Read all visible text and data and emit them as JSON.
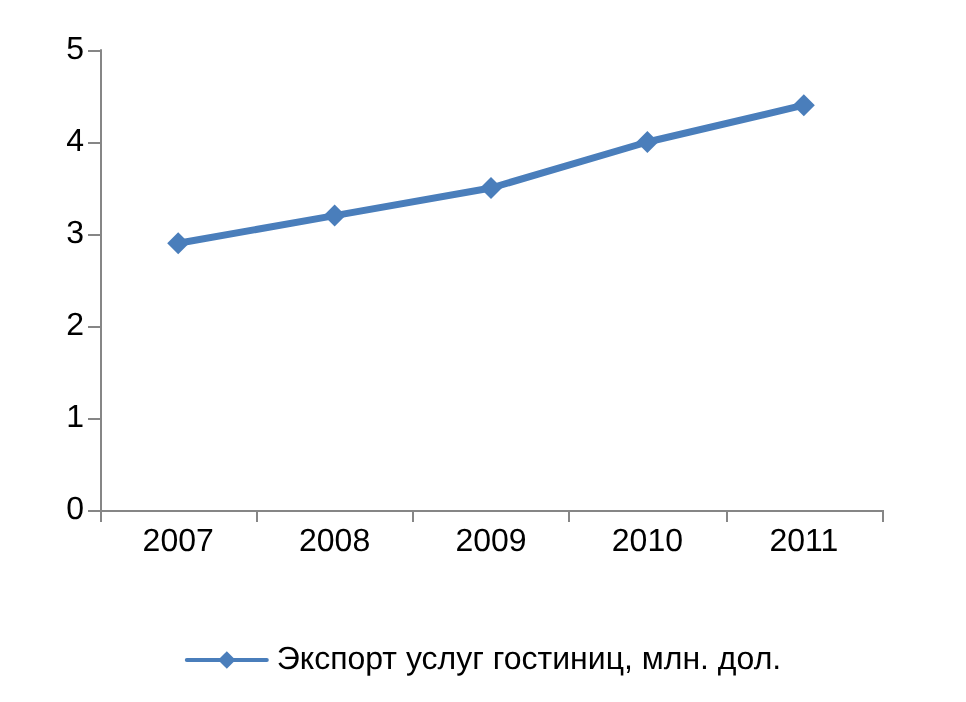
{
  "chart_data": {
    "type": "line",
    "categories": [
      "2007",
      "2008",
      "2009",
      "2010",
      "2011"
    ],
    "series": [
      {
        "name": "Экспорт услуг гостиниц, млн. дол.",
        "color": "#4a7ebb",
        "values": [
          2.9,
          3.2,
          3.5,
          4.0,
          4.4
        ]
      }
    ],
    "ylim": [
      0,
      5
    ],
    "yticks": [
      0,
      1,
      2,
      3,
      4,
      5
    ],
    "grid": false,
    "legend": "bottom",
    "marker": "diamond",
    "line_style": "solid"
  }
}
